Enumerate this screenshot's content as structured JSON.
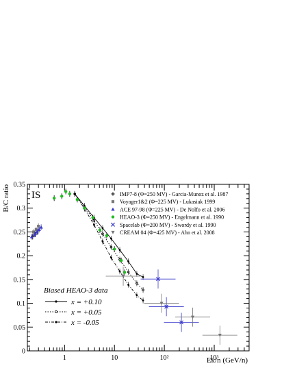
{
  "chart_data": {
    "type": "scatter",
    "ylabel": "B/C ratio",
    "xlabel": "Ek/n (GeV/n)",
    "panel_label": "IS",
    "xscale": "log",
    "xlim": [
      0.18,
      5000
    ],
    "ylim": [
      0,
      0.35
    ],
    "grid": false,
    "legend_position": "top-right",
    "x_major_ticks": [
      1,
      10,
      100,
      1000
    ],
    "x_tick_labels": [
      "1",
      "10",
      "10²",
      "10³"
    ],
    "y_ticks": [
      0,
      0.05,
      0.1,
      0.15,
      0.2,
      0.25,
      0.3,
      0.35
    ],
    "y_tick_labels": [
      "0",
      "0.05",
      "0.1",
      "0.15",
      "0.2",
      "0.25",
      "0.3",
      "0.35"
    ],
    "series": [
      {
        "name": "IMP7-8 (Φ=250 MV) - Garcia-Munoz et al. 1987",
        "marker": "plus",
        "color": "#000000",
        "x": [
          0.23,
          0.26,
          0.29
        ],
        "y": [
          0.24,
          0.245,
          0.25
        ]
      },
      {
        "name": "Voyager1&2 (Φ=225 MV) - Lukasiak 1999",
        "marker": "square",
        "color": "#777777",
        "x": [
          0.24,
          0.27,
          0.3
        ],
        "y": [
          0.25,
          0.255,
          0.262
        ]
      },
      {
        "name": "ACE 97-98 (Φ=225 MV) - De Nolfo et al. 2006",
        "marker": "triangle-up",
        "color": "#3a3acc",
        "x": [
          0.22,
          0.25,
          0.28,
          0.31,
          0.34
        ],
        "y": [
          0.24,
          0.245,
          0.25,
          0.255,
          0.26
        ]
      },
      {
        "name": "HEAO-3 (Φ=250 MV) - Engelmann et al. 1990",
        "marker": "circle",
        "color": "#22bb22",
        "x": [
          0.62,
          0.88,
          1.06,
          1.27,
          1.8,
          2.5,
          3.7,
          5.1,
          7.0,
          10.0,
          13.7,
          16.0
        ],
        "y": [
          0.321,
          0.325,
          0.335,
          0.33,
          0.318,
          0.3,
          0.28,
          0.254,
          0.242,
          0.214,
          0.19,
          0.165
        ]
      },
      {
        "name": "Spacelab (Φ=200 MV) - Swordy et al. 1990",
        "marker": "x",
        "color": "#3a3acc",
        "x": [
          75,
          110,
          220
        ],
        "y": [
          0.151,
          0.093,
          0.06
        ]
      },
      {
        "name": "CREAM 04 (Φ=425 MV) - Ahn et al. 2008",
        "marker": "triangle-down",
        "color": "#777777",
        "x": [
          15,
          88,
          370,
          1300
        ],
        "y": [
          0.157,
          0.1,
          0.071,
          0.033
        ]
      }
    ],
    "model_curves": [
      {
        "name": "x = +0.10",
        "x": [
          1.6,
          2.5,
          3.9,
          5.8,
          8.6,
          12.8,
          19,
          28.1,
          37.5
        ],
        "y": [
          0.33,
          0.305,
          0.28,
          0.258,
          0.236,
          0.212,
          0.188,
          0.162,
          0.155
        ]
      },
      {
        "name": "x = +0.05",
        "x": [
          1.6,
          2.5,
          3.9,
          5.8,
          8.6,
          12.8,
          19,
          28.1,
          37.5
        ],
        "y": [
          0.33,
          0.303,
          0.274,
          0.246,
          0.218,
          0.192,
          0.166,
          0.142,
          0.128
        ]
      },
      {
        "name": "x = -0.05",
        "x": [
          1.6,
          2.5,
          3.9,
          5.8,
          8.6,
          12.8,
          19,
          28.1,
          37.5
        ],
        "y": [
          0.33,
          0.299,
          0.265,
          0.23,
          0.196,
          0.167,
          0.139,
          0.117,
          0.106
        ]
      }
    ],
    "inset_legend_title": "Biased HEAO-3 data"
  }
}
